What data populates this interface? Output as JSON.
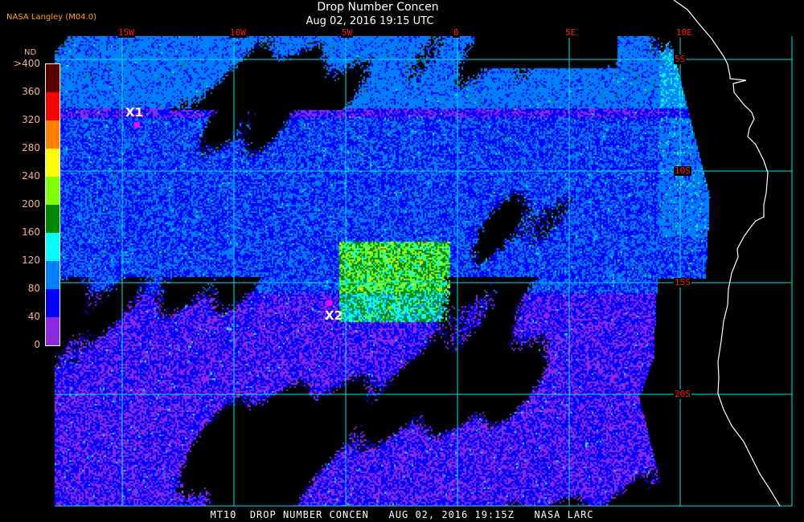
{
  "header": {
    "title": "Drop Number Concen",
    "datetime": "Aug 02, 2016 19:15 UTC",
    "org": "NASA Langley (M04.0)"
  },
  "map": {
    "lon_labels": [
      "15W",
      "10W",
      "5W",
      "0",
      "5E",
      "10E"
    ],
    "lat_labels": [
      "5S",
      "10S",
      "15S",
      "20S"
    ],
    "grid_color": "#00e5ee",
    "label_color": "#ff1a1a",
    "coastline_color": "#ffffff"
  },
  "colorbar": {
    "unit": "ND",
    "ticks": [
      ">400",
      "360",
      "320",
      "280",
      "240",
      "200",
      "160",
      "120",
      "80",
      "40",
      "0"
    ],
    "colors": [
      "#5a0000",
      "#ff0000",
      "#ff8000",
      "#ffff00",
      "#80ff00",
      "#008800",
      "#00ffff",
      "#0080ff",
      "#0000ff",
      "#8a2be2"
    ]
  },
  "markers": [
    {
      "label": "X1"
    },
    {
      "label": "X2"
    }
  ],
  "footer": "MT10  DROP NUMBER CONCEN   AUG 02, 2016 19:15Z   NASA LARC"
}
